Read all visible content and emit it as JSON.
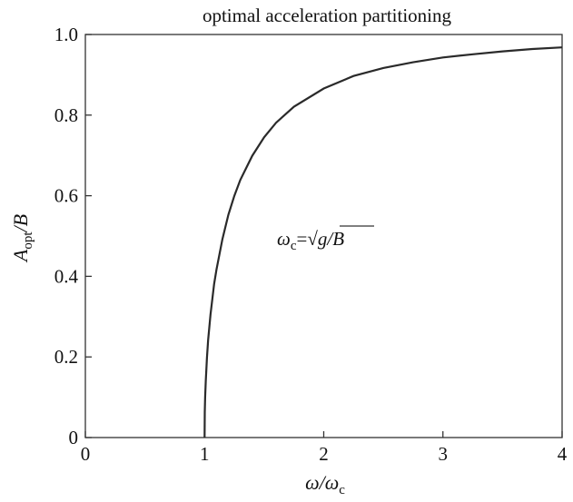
{
  "chart_data": {
    "type": "line",
    "title": "optimal acceleration partitioning",
    "xlabel": {
      "main": "ω/ω",
      "sub": "c"
    },
    "ylabel": {
      "pre": "A",
      "sub": "opt",
      "post": "/B"
    },
    "annotation": {
      "lhs": "ω",
      "lhs_sub": "c",
      "eq": "=",
      "radical": "√",
      "radicand": "g/B"
    },
    "xlim": [
      0,
      4
    ],
    "ylim": [
      0,
      1
    ],
    "x_ticks": [
      0,
      1,
      2,
      3,
      4
    ],
    "x_tick_labels": [
      "0",
      "1",
      "2",
      "3",
      "4"
    ],
    "y_ticks": [
      0,
      0.2,
      0.4,
      0.6,
      0.8,
      1.0
    ],
    "y_tick_labels": [
      "0",
      "0.2",
      "0.4",
      "0.6",
      "0.8",
      "1.0"
    ],
    "grid": false,
    "line_color": "#2a2a2a",
    "series": [
      {
        "x": [
          1.0,
          1.002,
          1.005,
          1.01,
          1.02,
          1.03,
          1.05,
          1.08,
          1.1,
          1.15,
          1.2,
          1.25,
          1.3,
          1.4,
          1.5,
          1.6,
          1.75,
          2.0,
          2.25,
          2.5,
          2.75,
          3.0,
          3.25,
          3.5,
          3.75,
          4.0
        ],
        "values": [
          0.0,
          0.063,
          0.1,
          0.14,
          0.198,
          0.242,
          0.305,
          0.381,
          0.417,
          0.492,
          0.553,
          0.6,
          0.639,
          0.699,
          0.745,
          0.781,
          0.821,
          0.866,
          0.897,
          0.917,
          0.931,
          0.943,
          0.951,
          0.958,
          0.964,
          0.968
        ]
      }
    ]
  }
}
